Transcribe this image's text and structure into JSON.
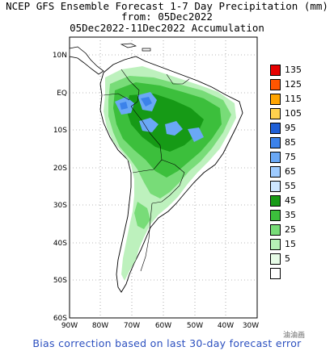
{
  "title": {
    "line1": "NCEP GFS Ensemble Forecast 1-7 Day Precipitation (mm)",
    "line2": "from: 05Dec2022",
    "line3": "05Dec2022-11Dec2022 Accumulation"
  },
  "axes": {
    "lat_labels": [
      "10N",
      "EQ",
      "10S",
      "20S",
      "30S",
      "40S",
      "50S",
      "60S"
    ],
    "lon_labels": [
      "90W",
      "80W",
      "70W",
      "60W",
      "50W",
      "40W",
      "30W"
    ]
  },
  "legend": {
    "bins": [
      {
        "label": "135",
        "color": "#e60000"
      },
      {
        "label": "125",
        "color": "#ff5500"
      },
      {
        "label": "115",
        "color": "#ffa500"
      },
      {
        "label": "105",
        "color": "#ffd24d"
      },
      {
        "label": "95",
        "color": "#1f5fd6"
      },
      {
        "label": "85",
        "color": "#3c82ea"
      },
      {
        "label": "75",
        "color": "#6aa8f5"
      },
      {
        "label": "65",
        "color": "#9ecbff"
      },
      {
        "label": "55",
        "color": "#cde6ff"
      },
      {
        "label": "45",
        "color": "#169a16"
      },
      {
        "label": "35",
        "color": "#3cbf3c"
      },
      {
        "label": "25",
        "color": "#78dc78"
      },
      {
        "label": "15",
        "color": "#b6f0b6"
      },
      {
        "label": "5",
        "color": "#e6fbe6"
      },
      {
        "label": "",
        "color": "#ffffff"
      }
    ]
  },
  "footer": {
    "bias_note": "Bias correction based on last 30-day forecast error",
    "watermark": "油油画"
  }
}
